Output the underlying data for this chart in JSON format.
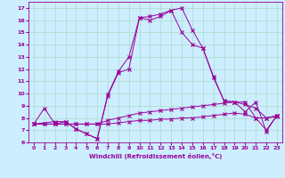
{
  "xlabel": "Windchill (Refroidissement éolien,°C)",
  "background_color": "#cceeff",
  "grid_color": "#b0ddd0",
  "line_color": "#990099",
  "xlim": [
    -0.5,
    23.5
  ],
  "ylim": [
    6.0,
    17.5
  ],
  "xticks": [
    0,
    1,
    2,
    3,
    4,
    5,
    6,
    7,
    8,
    9,
    10,
    11,
    12,
    13,
    14,
    15,
    16,
    17,
    18,
    19,
    20,
    21,
    22,
    23
  ],
  "yticks": [
    6,
    7,
    8,
    9,
    10,
    11,
    12,
    13,
    14,
    15,
    16,
    17
  ],
  "series": [
    {
      "x": [
        0,
        1,
        2,
        3,
        4,
        5,
        6,
        7,
        8,
        9,
        10,
        11,
        12,
        13,
        14,
        15,
        16,
        17,
        18,
        19,
        20,
        21,
        22,
        23
      ],
      "y": [
        7.5,
        7.5,
        7.5,
        7.5,
        7.5,
        7.5,
        7.5,
        7.5,
        7.6,
        7.7,
        7.8,
        7.8,
        7.9,
        7.9,
        8.0,
        8.0,
        8.1,
        8.2,
        8.3,
        8.4,
        8.3,
        8.0,
        8.0,
        8.1
      ]
    },
    {
      "x": [
        0,
        1,
        2,
        3,
        4,
        5,
        6,
        7,
        8,
        9,
        10,
        11,
        12,
        13,
        14,
        15,
        16,
        17,
        18,
        19,
        20,
        21,
        22,
        23
      ],
      "y": [
        7.5,
        7.5,
        7.5,
        7.5,
        7.5,
        7.5,
        7.5,
        7.8,
        8.0,
        8.2,
        8.4,
        8.5,
        8.6,
        8.7,
        8.8,
        8.9,
        9.0,
        9.1,
        9.2,
        9.3,
        9.1,
        8.8,
        8.0,
        8.2
      ]
    },
    {
      "x": [
        0,
        1,
        2,
        3,
        4,
        5,
        6,
        7,
        8,
        9,
        10,
        11,
        12,
        13,
        14,
        15,
        16,
        17,
        18,
        19,
        20,
        21,
        22,
        23
      ],
      "y": [
        7.5,
        8.8,
        7.5,
        7.7,
        7.1,
        6.7,
        6.3,
        9.8,
        11.7,
        12.0,
        16.2,
        16.3,
        16.5,
        16.8,
        15.0,
        14.0,
        13.7,
        11.3,
        9.4,
        9.3,
        9.3,
        8.0,
        7.0,
        8.2
      ]
    },
    {
      "x": [
        0,
        2,
        3,
        4,
        5,
        6,
        7,
        8,
        9,
        10,
        11,
        12,
        13,
        14,
        15,
        16,
        17,
        18,
        19,
        20,
        21,
        22,
        23
      ],
      "y": [
        7.5,
        7.7,
        7.7,
        7.1,
        6.7,
        6.3,
        9.9,
        11.8,
        13.0,
        16.2,
        16.0,
        16.3,
        16.8,
        17.0,
        15.2,
        13.7,
        11.4,
        9.4,
        9.3,
        8.5,
        9.3,
        6.9,
        8.2
      ]
    }
  ]
}
